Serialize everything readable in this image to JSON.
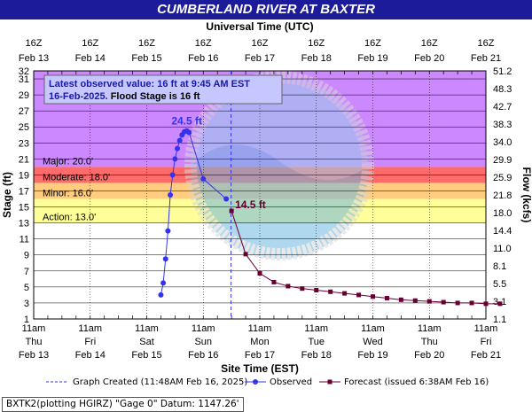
{
  "title": "CUMBERLAND RIVER AT BAXTER",
  "chart_data": {
    "type": "line",
    "title": "CUMBERLAND RIVER AT BAXTER",
    "top_axis_label": "Universal Time (UTC)",
    "xlabel": "Site Time (EST)",
    "ylabel": "Stage (ft)",
    "ylabel_right": "Flow (kcfs)",
    "xlim": [
      "2025-02-13 00:00",
      "2025-02-21 00:00"
    ],
    "ylim": [
      1,
      32
    ],
    "y_ticks": [
      1,
      3,
      5,
      7,
      9,
      11,
      13,
      15,
      17,
      19,
      21,
      23,
      25,
      27,
      29,
      31,
      32
    ],
    "y_ticks_right": [
      "1.1",
      "3.1",
      "5.5",
      "8.1",
      "11.0",
      "14.4",
      "18.0",
      "21.8",
      "25.9",
      "29.9",
      "34.0",
      "38.3",
      "42.7",
      "48.3",
      "51.2"
    ],
    "x_ticks_top": [
      {
        "time": "16Z",
        "date": "Feb 13"
      },
      {
        "time": "16Z",
        "date": "Feb 14"
      },
      {
        "time": "16Z",
        "date": "Feb 15"
      },
      {
        "time": "16Z",
        "date": "Feb 16"
      },
      {
        "time": "16Z",
        "date": "Feb 17"
      },
      {
        "time": "16Z",
        "date": "Feb 18"
      },
      {
        "time": "16Z",
        "date": "Feb 19"
      },
      {
        "time": "16Z",
        "date": "Feb 20"
      },
      {
        "time": "16Z",
        "date": "Feb 21"
      }
    ],
    "x_ticks_bottom": [
      {
        "time": "11am",
        "day": "Thu",
        "date": "Feb 13"
      },
      {
        "time": "11am",
        "day": "Fri",
        "date": "Feb 14"
      },
      {
        "time": "11am",
        "day": "Sat",
        "date": "Feb 15"
      },
      {
        "time": "11am",
        "day": "Sun",
        "date": "Feb 16"
      },
      {
        "time": "11am",
        "day": "Mon",
        "date": "Feb 17"
      },
      {
        "time": "11am",
        "day": "Tue",
        "date": "Feb 18"
      },
      {
        "time": "11am",
        "day": "Wed",
        "date": "Feb 19"
      },
      {
        "time": "11am",
        "day": "Thu",
        "date": "Feb 20"
      },
      {
        "time": "11am",
        "day": "Fri",
        "date": "Feb 21"
      }
    ],
    "flood_categories": [
      {
        "name": "Major",
        "label": "Major: 20.0'",
        "stage": 20.0,
        "color": "#cc88ff"
      },
      {
        "name": "Moderate",
        "label": "Moderate: 18.0'",
        "stage": 18.0,
        "color": "#ff6a6a"
      },
      {
        "name": "Minor",
        "label": "Minor: 16.0'",
        "stage": 16.0,
        "color": "#ffcc80"
      },
      {
        "name": "Action",
        "label": "Action: 13.0'",
        "stage": 13.0,
        "color": "#ffff99"
      }
    ],
    "graph_created": "2025-02-16 11:48",
    "annotation": {
      "line1": "Latest observed value: 16 ft at 9:45 AM EST",
      "line2_date": "16-Feb-2025.",
      "line2_rest": " Flood Stage is 16 ft"
    },
    "peak_observed_label": "24.5 ft",
    "forecast_start_label": "14.5 ft",
    "series": [
      {
        "name": "Observed",
        "color": "#3333ee",
        "points": [
          [
            "2025-02-15 06:00",
            4.0
          ],
          [
            "2025-02-15 07:00",
            5.5
          ],
          [
            "2025-02-15 08:00",
            8.5
          ],
          [
            "2025-02-15 09:00",
            12.0
          ],
          [
            "2025-02-15 10:00",
            16.5
          ],
          [
            "2025-02-15 11:00",
            19.0
          ],
          [
            "2025-02-15 12:00",
            21.0
          ],
          [
            "2025-02-15 13:00",
            22.3
          ],
          [
            "2025-02-15 14:00",
            23.3
          ],
          [
            "2025-02-15 15:00",
            24.0
          ],
          [
            "2025-02-15 16:00",
            24.4
          ],
          [
            "2025-02-15 17:00",
            24.5
          ],
          [
            "2025-02-15 18:00",
            24.3
          ],
          [
            "2025-02-16 00:00",
            18.5
          ],
          [
            "2025-02-16 09:45",
            16.0
          ]
        ]
      },
      {
        "name": "Forecast",
        "label": "Forecast (issued 6:38AM Feb 16)",
        "color": "#660033",
        "points": [
          [
            "2025-02-16 12:00",
            14.5
          ],
          [
            "2025-02-16 18:00",
            9.1
          ],
          [
            "2025-02-17 00:00",
            6.7
          ],
          [
            "2025-02-17 06:00",
            5.6
          ],
          [
            "2025-02-17 12:00",
            5.1
          ],
          [
            "2025-02-17 18:00",
            4.8
          ],
          [
            "2025-02-18 00:00",
            4.6
          ],
          [
            "2025-02-18 06:00",
            4.4
          ],
          [
            "2025-02-18 12:00",
            4.2
          ],
          [
            "2025-02-18 18:00",
            4.0
          ],
          [
            "2025-02-19 00:00",
            3.8
          ],
          [
            "2025-02-19 06:00",
            3.6
          ],
          [
            "2025-02-19 12:00",
            3.4
          ],
          [
            "2025-02-19 18:00",
            3.3
          ],
          [
            "2025-02-20 00:00",
            3.2
          ],
          [
            "2025-02-20 06:00",
            3.1
          ],
          [
            "2025-02-20 12:00",
            3.0
          ],
          [
            "2025-02-20 18:00",
            3.0
          ],
          [
            "2025-02-21 00:00",
            2.9
          ],
          [
            "2025-02-21 06:00",
            2.9
          ]
        ]
      }
    ],
    "legend": {
      "graph_created": "Graph Created (11:48AM Feb 16, 2025)",
      "observed": "Observed",
      "forecast": "Forecast (issued 6:38AM Feb 16)"
    }
  },
  "footer": "BXTK2(plotting HGIRZ) \"Gage 0\" Datum: 1147.26'"
}
